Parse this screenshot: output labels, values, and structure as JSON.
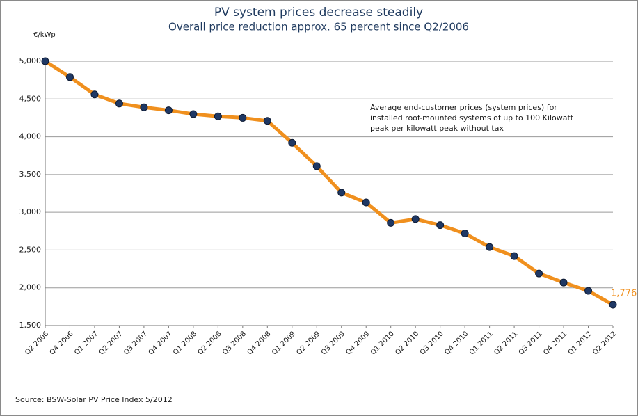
{
  "chart_data": {
    "type": "line",
    "title": "PV system prices decrease steadily",
    "subtitle": "Overall price reduction approx. 65 percent  since Q2/2006",
    "y_label": "€/kWp",
    "annotation": [
      "Average end-customer prices (system prices) for",
      "installed roof-mounted systems of up to 100 Kilowatt",
      "peak per kilowatt peak without tax"
    ],
    "source": "Source: BSW-Solar  PV Price Index 5/2012",
    "categories": [
      "Q2 2006",
      "Q4 2006",
      "Q1 2007",
      "Q2 2007",
      "Q3 2007",
      "Q4 2007",
      "Q1 2008",
      "Q2 2008",
      "Q3 2008",
      "Q4 2008",
      "Q1 2009",
      "Q2 2009",
      "Q3 2009",
      "Q4 2009",
      "Q1 2010",
      "Q2 2010",
      "Q3 2010",
      "Q4 2010",
      "Q1 2011",
      "Q2 2011",
      "Q3 2011",
      "Q4 2011",
      "Q1 2012",
      "Q2 2012"
    ],
    "series": [
      {
        "name": "System price",
        "color": "#f0901e",
        "marker_color": "#1f3864",
        "values": [
          5000,
          4790,
          4560,
          4440,
          4390,
          4350,
          4300,
          4270,
          4250,
          4210,
          3920,
          3610,
          3260,
          3130,
          2860,
          2910,
          2830,
          2720,
          2540,
          2420,
          2190,
          2070,
          1960,
          1776
        ],
        "value_labels": [
          null,
          null,
          null,
          null,
          null,
          null,
          null,
          null,
          null,
          null,
          null,
          null,
          null,
          null,
          null,
          null,
          null,
          null,
          null,
          null,
          null,
          null,
          null,
          "1,776"
        ]
      }
    ],
    "ylim": [
      1500,
      5000
    ],
    "yticks": [
      {
        "value": 1500,
        "label": "1,500"
      },
      {
        "value": 2000,
        "label": "2,000"
      },
      {
        "value": 2500,
        "label": "2,500"
      },
      {
        "value": 3000,
        "label": "3,000"
      },
      {
        "value": 3500,
        "label": "3,500"
      },
      {
        "value": 4000,
        "label": "4,000"
      },
      {
        "value": 4500,
        "label": "4,500"
      },
      {
        "value": 5000,
        "label": "5,000"
      }
    ],
    "grid": true
  }
}
